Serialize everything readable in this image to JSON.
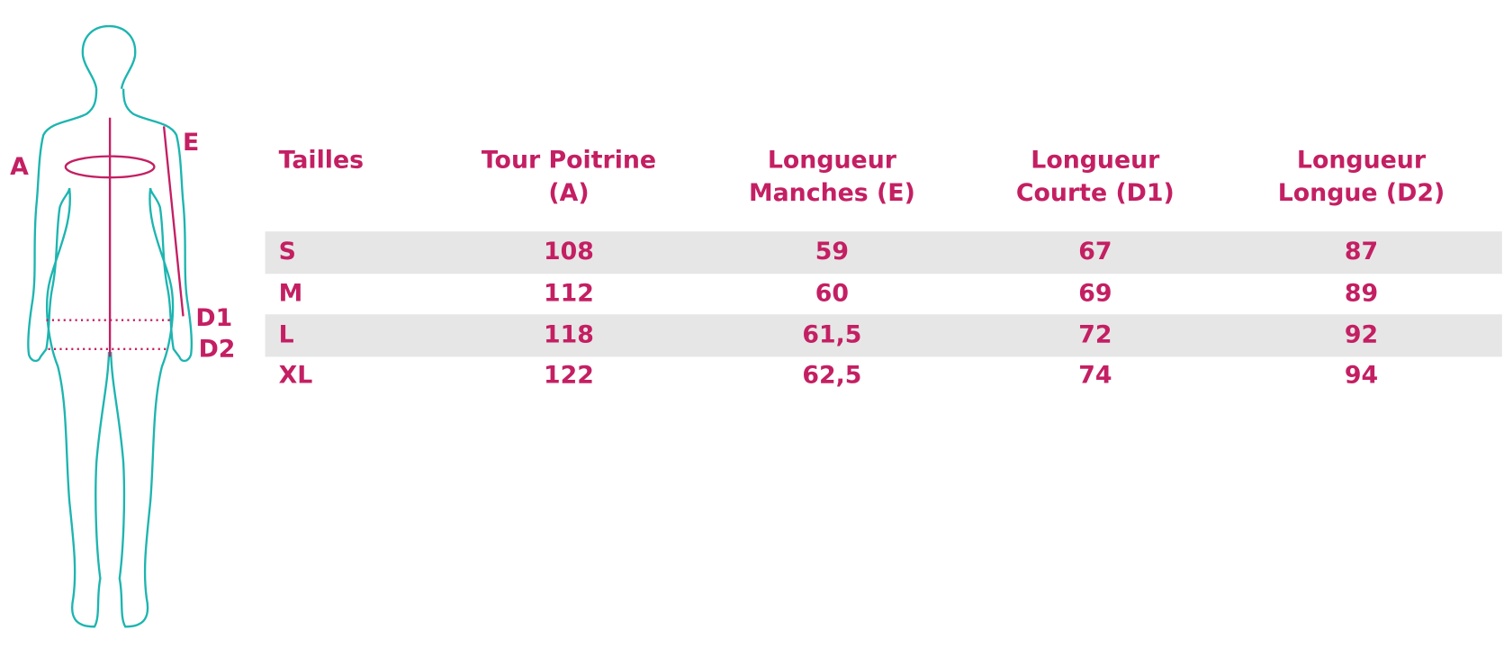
{
  "figure": {
    "labels": [
      "A",
      "E",
      "D1",
      "D2"
    ]
  },
  "table": {
    "headers": [
      [
        "Tailles"
      ],
      [
        "Tour Poitrine",
        "(A)"
      ],
      [
        "Longueur",
        "Manches (E)"
      ],
      [
        "Longueur",
        "Courte (D1)"
      ],
      [
        "Longueur",
        "Longue (D2)"
      ]
    ],
    "rows": [
      [
        "S",
        "108",
        "59",
        "67",
        "87"
      ],
      [
        "M",
        "112",
        "60",
        "69",
        "89"
      ],
      [
        "L",
        "118",
        "61,5",
        "72",
        "92"
      ],
      [
        "XL",
        "122",
        "62,5",
        "74",
        "94"
      ]
    ]
  }
}
